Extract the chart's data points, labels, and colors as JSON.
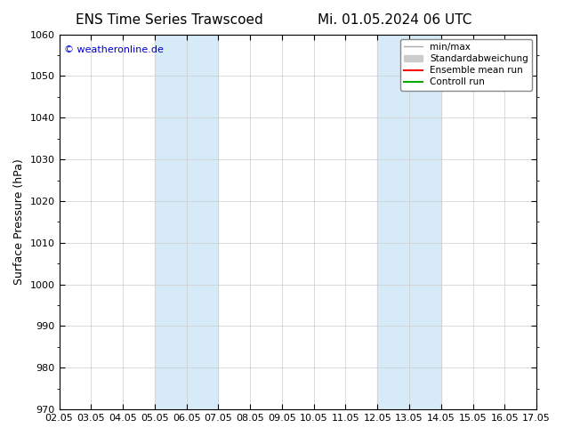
{
  "title_left": "ENS Time Series Trawscoed",
  "title_right": "Mi. 01.05.2024 06 UTC",
  "ylabel": "Surface Pressure (hPa)",
  "ylim": [
    970,
    1060
  ],
  "yticks": [
    970,
    980,
    990,
    1000,
    1010,
    1020,
    1030,
    1040,
    1050,
    1060
  ],
  "xtick_labels": [
    "02.05",
    "03.05",
    "04.05",
    "05.05",
    "06.05",
    "07.05",
    "08.05",
    "09.05",
    "10.05",
    "11.05",
    "12.05",
    "13.05",
    "14.05",
    "15.05",
    "16.05",
    "17.05"
  ],
  "shaded_regions": [
    {
      "xmin": 3,
      "xmax": 5,
      "color": "#d6eaf8"
    },
    {
      "xmin": 10,
      "xmax": 12,
      "color": "#d6eaf8"
    }
  ],
  "watermark": "© weatheronline.de",
  "watermark_color": "#0000cc",
  "legend_items": [
    {
      "label": "min/max",
      "color": "#aaaaaa",
      "lw": 1,
      "style": "line"
    },
    {
      "label": "Standardabweichung",
      "color": "#cccccc",
      "lw": 6,
      "style": "band"
    },
    {
      "label": "Ensemble mean run",
      "color": "#ff0000",
      "lw": 1.5,
      "style": "line"
    },
    {
      "label": "Controll run",
      "color": "#00aa00",
      "lw": 1.5,
      "style": "line"
    }
  ],
  "bg_color": "#ffffff",
  "plot_bg_color": "#ffffff",
  "border_color": "#000000",
  "title_fontsize": 11,
  "tick_fontsize": 8,
  "ylabel_fontsize": 9
}
